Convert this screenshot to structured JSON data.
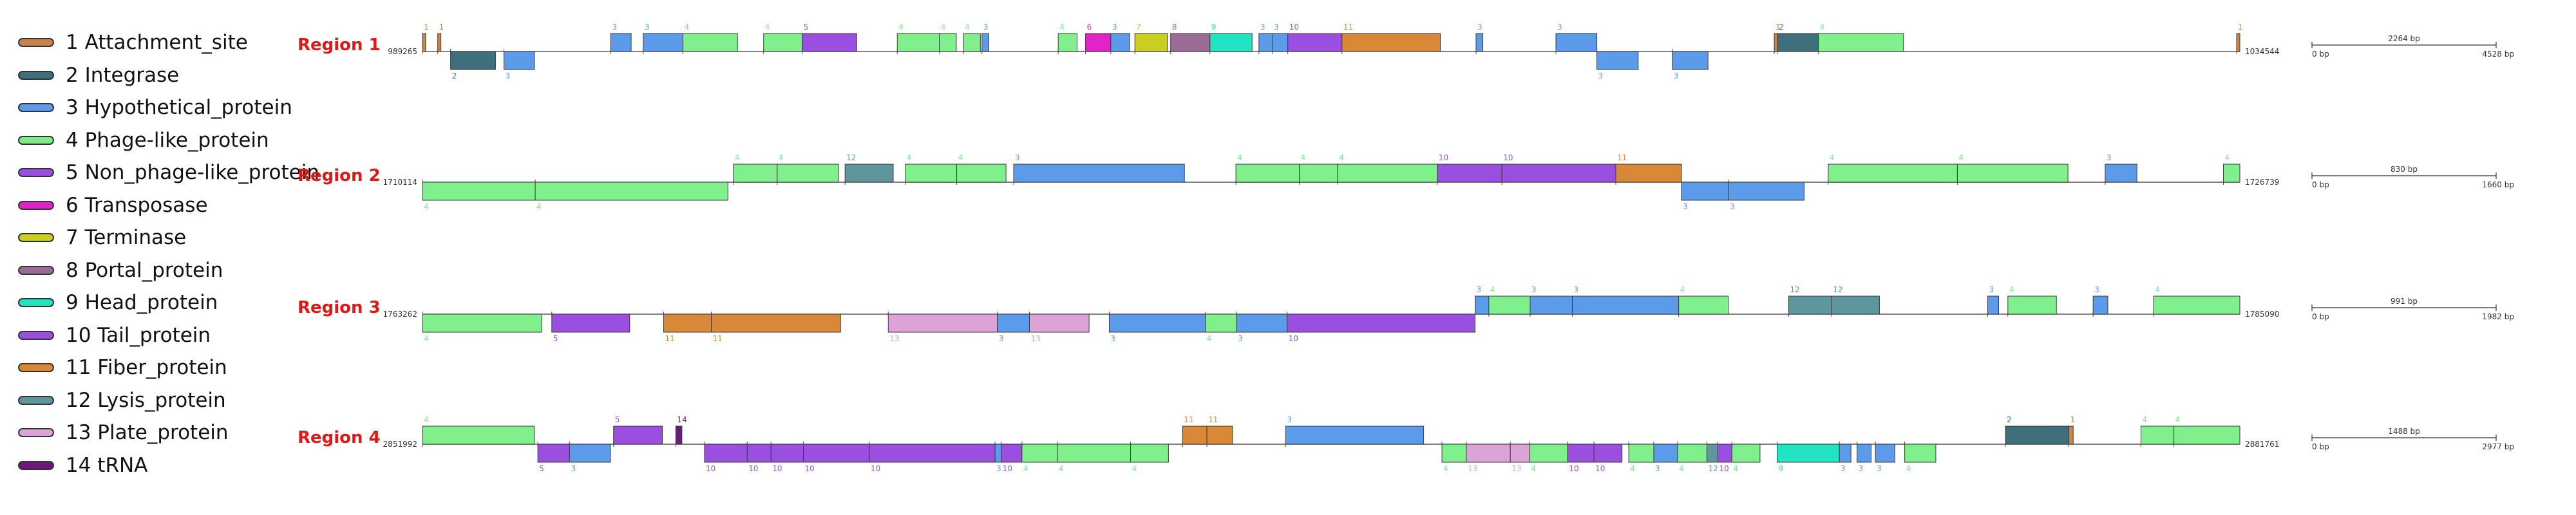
{
  "legend": [
    {
      "num": "1",
      "label": "Attachment_site",
      "color": "#c9834a"
    },
    {
      "num": "2",
      "label": "Integrase",
      "color": "#3f6f7a"
    },
    {
      "num": "3",
      "label": "Hypothetical_protein",
      "color": "#5b9bea"
    },
    {
      "num": "4",
      "label": "Phage-like_protein",
      "color": "#7deb8a"
    },
    {
      "num": "5",
      "label": "Non_phage-like_protein",
      "color": "#9a4fe0"
    },
    {
      "num": "6",
      "label": "Transposase",
      "color": "#e024c8"
    },
    {
      "num": "7",
      "label": "Terminase",
      "color": "#c8cf1e"
    },
    {
      "num": "8",
      "label": "Portal_protein",
      "color": "#9a6b94"
    },
    {
      "num": "9",
      "label": "Head_protein",
      "color": "#22e3c2"
    },
    {
      "num": "10",
      "label": "Tail_protein",
      "color": "#9a4fe0"
    },
    {
      "num": "11",
      "label": "Fiber_protein",
      "color": "#d98838"
    },
    {
      "num": "12",
      "label": "Lysis_protein",
      "color": "#5e969e"
    },
    {
      "num": "13",
      "label": "Plate_protein",
      "color": "#dba3d8"
    },
    {
      "num": "14",
      "label": "tRNA",
      "color": "#6b1a7a"
    }
  ],
  "colors": {
    "1": "#d18444",
    "2": "#3f6f7a",
    "3": "#5b9bea",
    "4": "#7ff08c",
    "5": "#9a4fe0",
    "6": "#e024c8",
    "7": "#c8cf1e",
    "8": "#9a6b94",
    "9": "#22e3c2",
    "10": "#9a4fe0",
    "11": "#d98838",
    "12": "#5e969e",
    "13": "#dba3d8",
    "14": "#6b1a7a"
  },
  "regions": [
    {
      "title": "Region 1",
      "start": "989265",
      "end": "1034544",
      "length_bp": 4528,
      "scale_mid": "2264 bp",
      "scale_left": "0 bp",
      "scale_right": "4528 bp",
      "genes": [
        {
          "t": "1",
          "s": 0,
          "e": 8,
          "d": 1
        },
        {
          "t": "1",
          "s": 38,
          "e": 46,
          "d": 1
        },
        {
          "t": "2",
          "s": 70,
          "e": 182,
          "d": -1
        },
        {
          "t": "3",
          "s": 203,
          "e": 279,
          "d": -1
        },
        {
          "t": "3",
          "s": 469,
          "e": 520,
          "d": 1
        },
        {
          "t": "3",
          "s": 550,
          "e": 649,
          "d": 1
        },
        {
          "t": "4",
          "s": 649,
          "e": 785,
          "d": 1
        },
        {
          "t": "4",
          "s": 850,
          "e": 946,
          "d": 1
        },
        {
          "t": "5",
          "s": 946,
          "e": 1082,
          "d": 1
        },
        {
          "t": "4",
          "s": 1183,
          "e": 1288,
          "d": 1
        },
        {
          "t": "4",
          "s": 1288,
          "e": 1330,
          "d": 1
        },
        {
          "t": "4",
          "s": 1348,
          "e": 1390,
          "d": 1
        },
        {
          "t": "3",
          "s": 1394,
          "e": 1411,
          "d": 1
        },
        {
          "t": "4",
          "s": 1584,
          "e": 1631,
          "d": 1
        },
        {
          "t": "6",
          "s": 1652,
          "e": 1715,
          "d": 1
        },
        {
          "t": "3",
          "s": 1715,
          "e": 1762,
          "d": 1
        },
        {
          "t": "7",
          "s": 1775,
          "e": 1856,
          "d": 1
        },
        {
          "t": "8",
          "s": 1864,
          "e": 1962,
          "d": 1
        },
        {
          "t": "9",
          "s": 1962,
          "e": 2067,
          "d": 1
        },
        {
          "t": "3",
          "s": 2084,
          "e": 2118,
          "d": 1
        },
        {
          "t": "3",
          "s": 2118,
          "e": 2156,
          "d": 1
        },
        {
          "t": "10",
          "s": 2156,
          "e": 2291,
          "d": 1
        },
        {
          "t": "11",
          "s": 2291,
          "e": 2536,
          "d": 1
        },
        {
          "t": "3",
          "s": 2625,
          "e": 2642,
          "d": 1
        },
        {
          "t": "3",
          "s": 2824,
          "e": 2926,
          "d": 1
        },
        {
          "t": "3",
          "s": 2926,
          "e": 3029,
          "d": -1
        },
        {
          "t": "3",
          "s": 3114,
          "e": 3203,
          "d": -1
        },
        {
          "t": "1",
          "s": 3368,
          "e": 3376,
          "d": 1
        },
        {
          "t": "2",
          "s": 3376,
          "e": 3478,
          "d": 1
        },
        {
          "t": "4",
          "s": 3478,
          "e": 3690,
          "d": 1
        },
        {
          "t": "1",
          "s": 4520,
          "e": 4528,
          "d": 1
        }
      ]
    },
    {
      "title": "Region 2",
      "start": "1710114",
      "end": "1726739",
      "length_bp": 1660,
      "scale_mid": "830 bp",
      "scale_left": "0 bp",
      "scale_right": "1660 bp",
      "genes": [
        {
          "t": "4",
          "s": 0,
          "e": 103,
          "d": -1
        },
        {
          "t": "4",
          "s": 103,
          "e": 279,
          "d": -1
        },
        {
          "t": "4",
          "s": 284,
          "e": 324,
          "d": 1
        },
        {
          "t": "4",
          "s": 324,
          "e": 380,
          "d": 1
        },
        {
          "t": "12",
          "s": 386,
          "e": 430,
          "d": 1
        },
        {
          "t": "4",
          "s": 441,
          "e": 488,
          "d": 1
        },
        {
          "t": "4",
          "s": 488,
          "e": 533,
          "d": 1
        },
        {
          "t": "3",
          "s": 540,
          "e": 696,
          "d": 1
        },
        {
          "t": "4",
          "s": 743,
          "e": 801,
          "d": 1
        },
        {
          "t": "4",
          "s": 801,
          "e": 836,
          "d": 1
        },
        {
          "t": "4",
          "s": 836,
          "e": 927,
          "d": 1
        },
        {
          "t": "10",
          "s": 927,
          "e": 986,
          "d": 1
        },
        {
          "t": "10",
          "s": 986,
          "e": 1090,
          "d": 1
        },
        {
          "t": "11",
          "s": 1090,
          "e": 1150,
          "d": 1
        },
        {
          "t": "3",
          "s": 1150,
          "e": 1193,
          "d": -1
        },
        {
          "t": "3",
          "s": 1193,
          "e": 1262,
          "d": -1
        },
        {
          "t": "4",
          "s": 1284,
          "e": 1402,
          "d": 1
        },
        {
          "t": "4",
          "s": 1402,
          "e": 1503,
          "d": 1
        },
        {
          "t": "3",
          "s": 1537,
          "e": 1566,
          "d": 1
        },
        {
          "t": "4",
          "s": 1645,
          "e": 1660,
          "d": 1
        }
      ]
    },
    {
      "title": "Region 3",
      "start": "1763262",
      "end": "1785090",
      "length_bp": 1982,
      "scale_mid": "991 bp",
      "scale_left": "0 bp",
      "scale_right": "1982 bp",
      "genes": [
        {
          "t": "4",
          "s": 0,
          "e": 130,
          "d": -1
        },
        {
          "t": "5",
          "s": 141,
          "e": 226,
          "d": -1
        },
        {
          "t": "11",
          "s": 263,
          "e": 315,
          "d": -1
        },
        {
          "t": "11",
          "s": 315,
          "e": 456,
          "d": -1
        },
        {
          "t": "13",
          "s": 508,
          "e": 627,
          "d": -1
        },
        {
          "t": "3",
          "s": 627,
          "e": 662,
          "d": -1
        },
        {
          "t": "13",
          "s": 662,
          "e": 727,
          "d": -1
        },
        {
          "t": "3",
          "s": 749,
          "e": 854,
          "d": -1
        },
        {
          "t": "4",
          "s": 854,
          "e": 888,
          "d": -1
        },
        {
          "t": "3",
          "s": 888,
          "e": 943,
          "d": -1
        },
        {
          "t": "10",
          "s": 943,
          "e": 1148,
          "d": -1
        },
        {
          "t": "3",
          "s": 1148,
          "e": 1163,
          "d": 1
        },
        {
          "t": "4",
          "s": 1163,
          "e": 1208,
          "d": 1
        },
        {
          "t": "3",
          "s": 1208,
          "e": 1254,
          "d": 1
        },
        {
          "t": "3",
          "s": 1254,
          "e": 1370,
          "d": 1
        },
        {
          "t": "4",
          "s": 1370,
          "e": 1424,
          "d": 1
        },
        {
          "t": "12",
          "s": 1490,
          "e": 1537,
          "d": 1
        },
        {
          "t": "12",
          "s": 1537,
          "e": 1589,
          "d": 1
        },
        {
          "t": "3",
          "s": 1707,
          "e": 1719,
          "d": 1
        },
        {
          "t": "4",
          "s": 1729,
          "e": 1782,
          "d": 1
        },
        {
          "t": "3",
          "s": 1822,
          "e": 1838,
          "d": 1
        },
        {
          "t": "4",
          "s": 1888,
          "e": 1982,
          "d": 1
        }
      ]
    },
    {
      "title": "Region 4",
      "start": "2851992",
      "end": "2881761",
      "length_bp": 2977,
      "scale_mid": "1488 bp",
      "scale_left": "0 bp",
      "scale_right": "2977 bp",
      "genes": [
        {
          "t": "4",
          "s": 0,
          "e": 183,
          "d": 1
        },
        {
          "t": "5",
          "s": 189,
          "e": 241,
          "d": -1
        },
        {
          "t": "3",
          "s": 241,
          "e": 308,
          "d": -1
        },
        {
          "t": "5",
          "s": 313,
          "e": 393,
          "d": 1
        },
        {
          "t": "14",
          "s": 415,
          "e": 425,
          "d": 1
        },
        {
          "t": "10",
          "s": 462,
          "e": 532,
          "d": -1
        },
        {
          "t": "10",
          "s": 532,
          "e": 571,
          "d": -1
        },
        {
          "t": "10",
          "s": 571,
          "e": 624,
          "d": -1
        },
        {
          "t": "10",
          "s": 624,
          "e": 732,
          "d": -1
        },
        {
          "t": "10",
          "s": 732,
          "e": 938,
          "d": -1
        },
        {
          "t": "3",
          "s": 938,
          "e": 948,
          "d": -1
        },
        {
          "t": "10",
          "s": 948,
          "e": 982,
          "d": -1
        },
        {
          "t": "4",
          "s": 982,
          "e": 1040,
          "d": -1
        },
        {
          "t": "4",
          "s": 1040,
          "e": 1160,
          "d": -1
        },
        {
          "t": "4",
          "s": 1160,
          "e": 1222,
          "d": -1
        },
        {
          "t": "11",
          "s": 1245,
          "e": 1285,
          "d": 1
        },
        {
          "t": "11",
          "s": 1285,
          "e": 1327,
          "d": 1
        },
        {
          "t": "3",
          "s": 1414,
          "e": 1640,
          "d": 1
        },
        {
          "t": "4",
          "s": 1670,
          "e": 1710,
          "d": -1
        },
        {
          "t": "13",
          "s": 1710,
          "e": 1782,
          "d": -1
        },
        {
          "t": "13",
          "s": 1782,
          "e": 1814,
          "d": -1
        },
        {
          "t": "4",
          "s": 1814,
          "e": 1876,
          "d": -1
        },
        {
          "t": "10",
          "s": 1876,
          "e": 1919,
          "d": -1
        },
        {
          "t": "10",
          "s": 1919,
          "e": 1965,
          "d": -1
        },
        {
          "t": "4",
          "s": 1976,
          "e": 2017,
          "d": -1
        },
        {
          "t": "3",
          "s": 2017,
          "e": 2056,
          "d": -1
        },
        {
          "t": "4",
          "s": 2056,
          "e": 2104,
          "d": -1
        },
        {
          "t": "12",
          "s": 2104,
          "e": 2122,
          "d": -1
        },
        {
          "t": "10",
          "s": 2122,
          "e": 2145,
          "d": -1
        },
        {
          "t": "4",
          "s": 2145,
          "e": 2191,
          "d": -1
        },
        {
          "t": "9",
          "s": 2219,
          "e": 2321,
          "d": -1
        },
        {
          "t": "3",
          "s": 2321,
          "e": 2340,
          "d": -1
        },
        {
          "t": "3",
          "s": 2350,
          "e": 2373,
          "d": -1
        },
        {
          "t": "3",
          "s": 2380,
          "e": 2412,
          "d": -1
        },
        {
          "t": "4",
          "s": 2428,
          "e": 2479,
          "d": -1
        },
        {
          "t": "2",
          "s": 2593,
          "e": 2697,
          "d": 1
        },
        {
          "t": "1",
          "s": 2697,
          "e": 2704,
          "d": 1
        },
        {
          "t": "4",
          "s": 2815,
          "e": 2869,
          "d": 1
        },
        {
          "t": "4",
          "s": 2869,
          "e": 2977,
          "d": 1
        }
      ]
    }
  ]
}
